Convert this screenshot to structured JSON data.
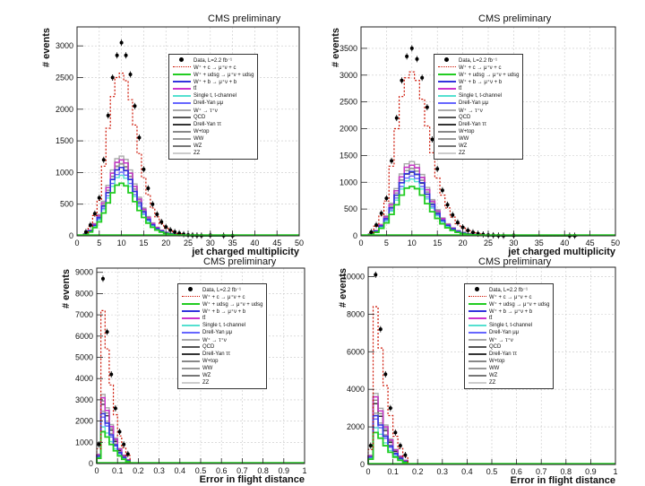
{
  "chart_data": [
    {
      "type": "bar",
      "title": "CMS preliminary",
      "xlabel": "jet charged multiplicity",
      "ylabel": "# events",
      "xlim": [
        0,
        50
      ],
      "ylim": [
        0,
        3300
      ],
      "x_ticks": [
        "0",
        "5",
        "10",
        "15",
        "20",
        "25",
        "30",
        "35",
        "40",
        "45",
        "50"
      ],
      "y_ticks": [
        "0",
        "500",
        "1000",
        "1500",
        "2000",
        "2500",
        "3000"
      ],
      "grid": true,
      "legend_position": "top-right",
      "legend": [
        "Data, L=2.2 fb⁻¹",
        "W⁺ + c → μ⁺ν + c",
        "W⁺ + udsg → μ⁺ν + udsg",
        "W⁺ + b → μ⁺ν + b",
        "tt̄",
        "Single t, t-channel",
        "Drell-Yan μμ",
        "W⁺ → τ⁺ν",
        "QCD",
        "Drell-Yan ττ",
        "W+top",
        "WW",
        "WZ",
        "ZZ"
      ],
      "bin_width": 1,
      "x": [
        2,
        3,
        4,
        5,
        6,
        7,
        8,
        9,
        10,
        11,
        12,
        13,
        14,
        15,
        16,
        17,
        18,
        19,
        20,
        21,
        22,
        23,
        24,
        25,
        26,
        27,
        28,
        30,
        33,
        35
      ],
      "series": [
        {
          "name": "Data, L=2.2 fb⁻¹",
          "values": [
            60,
            170,
            350,
            600,
            1200,
            1900,
            2500,
            2850,
            3050,
            2850,
            2550,
            2050,
            1550,
            1050,
            750,
            500,
            340,
            220,
            140,
            90,
            60,
            40,
            25,
            15,
            8,
            5,
            3,
            8,
            3,
            3
          ]
        },
        {
          "name": "W⁺ + c → μ⁺ν + c",
          "values": [
            50,
            150,
            320,
            560,
            1100,
            1700,
            2200,
            2500,
            2570,
            2450,
            2150,
            1750,
            1300,
            920,
            650,
            440,
            300,
            190,
            120,
            80,
            50,
            32,
            20,
            12,
            7,
            4,
            2,
            1,
            1,
            0
          ]
        },
        {
          "name": "W⁺ + udsg → μ⁺ν + udsg",
          "values": [
            20,
            60,
            130,
            220,
            360,
            520,
            680,
            800,
            830,
            790,
            680,
            540,
            400,
            290,
            200,
            135,
            90,
            58,
            37,
            24,
            15,
            9,
            5,
            3,
            2,
            1,
            1,
            0,
            0,
            0
          ]
        },
        {
          "name": "W⁺ + b → μ⁺ν + b",
          "values": [
            26,
            78,
            165,
            290,
            470,
            680,
            890,
            1040,
            1080,
            1030,
            890,
            700,
            520,
            380,
            260,
            175,
            117,
            75,
            48,
            31,
            20,
            12,
            7,
            4,
            3,
            1,
            1,
            0,
            0,
            0
          ]
        },
        {
          "name": "tt̄",
          "values": [
            29,
            87,
            185,
            320,
            520,
            760,
            990,
            1160,
            1200,
            1150,
            990,
            780,
            580,
            420,
            290,
            195,
            130,
            84,
            53,
            35,
            22,
            13,
            8,
            5,
            3,
            1,
            1,
            0,
            0,
            0
          ]
        }
      ]
    },
    {
      "type": "bar",
      "title": "CMS preliminary",
      "xlabel": "jet charged multiplicity",
      "ylabel": "# events",
      "xlim": [
        0,
        50
      ],
      "ylim": [
        0,
        3900
      ],
      "x_ticks": [
        "0",
        "5",
        "10",
        "15",
        "20",
        "25",
        "30",
        "35",
        "40",
        "45",
        "50"
      ],
      "y_ticks": [
        "0",
        "500",
        "1000",
        "1500",
        "2000",
        "2500",
        "3000",
        "3500"
      ],
      "grid": true,
      "legend_position": "top-right",
      "legend": [
        "Data, L=2.2 fb⁻¹",
        "W⁺ + c → μ⁺ν + c",
        "W⁺ + udsg → μ⁺ν + udsg",
        "W⁺ + b → μ⁺ν + b",
        "tt̄",
        "Single t, t-channel",
        "Drell-Yan μμ",
        "W⁺ → τ⁺ν",
        "QCD",
        "Drell-Yan ττ",
        "W+top",
        "WW",
        "WZ",
        "ZZ"
      ],
      "bin_width": 1,
      "x": [
        2,
        3,
        4,
        5,
        6,
        7,
        8,
        9,
        10,
        11,
        12,
        13,
        14,
        15,
        16,
        17,
        18,
        19,
        20,
        21,
        22,
        23,
        24,
        25,
        26,
        27,
        28,
        30,
        41,
        42
      ],
      "series": [
        {
          "name": "Data, L=2.2 fb⁻¹",
          "values": [
            70,
            200,
            420,
            700,
            1400,
            2200,
            2900,
            3350,
            3500,
            3300,
            2950,
            2400,
            1800,
            1250,
            850,
            580,
            390,
            250,
            160,
            100,
            65,
            40,
            25,
            15,
            10,
            5,
            3,
            8,
            3,
            3
          ]
        },
        {
          "name": "W⁺ + c → μ⁺ν + c",
          "values": [
            60,
            180,
            380,
            650,
            1300,
            2000,
            2600,
            2950,
            3060,
            2900,
            2550,
            2050,
            1550,
            1080,
            760,
            520,
            350,
            225,
            145,
            95,
            60,
            37,
            23,
            14,
            8,
            5,
            2,
            1,
            0,
            0
          ]
        },
        {
          "name": "W⁺ + udsg → μ⁺ν + udsg",
          "values": [
            22,
            66,
            140,
            240,
            400,
            580,
            760,
            890,
            920,
            880,
            760,
            600,
            450,
            325,
            225,
            150,
            100,
            65,
            42,
            27,
            17,
            10,
            6,
            3,
            2,
            1,
            1,
            0,
            0,
            0
          ]
        },
        {
          "name": "W⁺ + b → μ⁺ν + b",
          "values": [
            29,
            87,
            185,
            320,
            520,
            760,
            990,
            1160,
            1200,
            1150,
            990,
            780,
            585,
            420,
            290,
            195,
            130,
            85,
            55,
            35,
            22,
            13,
            8,
            5,
            3,
            1,
            1,
            0,
            0,
            0
          ]
        },
        {
          "name": "tt̄",
          "values": [
            32,
            96,
            205,
            355,
            580,
            840,
            1100,
            1280,
            1320,
            1270,
            1090,
            860,
            645,
            465,
            320,
            215,
            143,
            93,
            60,
            39,
            24,
            14,
            9,
            5,
            3,
            1,
            1,
            0,
            0,
            0
          ]
        }
      ]
    },
    {
      "type": "bar",
      "title": "CMS preliminary",
      "xlabel": "Error in flight distance",
      "ylabel": "# events",
      "xlim": [
        0,
        1
      ],
      "ylim": [
        0,
        9200
      ],
      "x_ticks": [
        "0",
        "0.1",
        "0.2",
        "0.3",
        "0.4",
        "0.5",
        "0.6",
        "0.7",
        "0.8",
        "0.9",
        "1"
      ],
      "y_ticks": [
        "0",
        "1000",
        "2000",
        "3000",
        "4000",
        "5000",
        "6000",
        "7000",
        "8000",
        "9000"
      ],
      "grid": true,
      "legend_position": "top-right",
      "legend": [
        "Data, L=2.2 fb⁻¹",
        "W⁺ + c → μ⁺ν + c",
        "W⁺ + udsg → μ⁺ν + udsg",
        "W⁺ + b → μ⁺ν + b",
        "tt̄",
        "Single t, t-channel",
        "Drell-Yan μμ",
        "W⁺ → τ⁺ν",
        "QCD",
        "Drell-Yan ττ",
        "W+top",
        "WW",
        "WZ",
        "ZZ"
      ],
      "bin_width": 0.02,
      "x": [
        0.01,
        0.03,
        0.05,
        0.07,
        0.09,
        0.11,
        0.13,
        0.15
      ],
      "series": [
        {
          "name": "Data, L=2.2 fb⁻¹",
          "values": [
            900,
            8700,
            6200,
            4200,
            2600,
            1500,
            900,
            450
          ]
        },
        {
          "name": "W⁺ + c → μ⁺ν + c",
          "values": [
            700,
            7200,
            5400,
            3700,
            2300,
            1300,
            750,
            380
          ]
        },
        {
          "name": "W⁺ + udsg → μ⁺ν + udsg",
          "values": [
            250,
            1500,
            1250,
            900,
            600,
            360,
            200,
            100
          ]
        },
        {
          "name": "W⁺ + b → μ⁺ν + b",
          "values": [
            350,
            2350,
            1900,
            1350,
            880,
            520,
            290,
            140
          ]
        },
        {
          "name": "tt̄",
          "values": [
            420,
            3100,
            2500,
            1750,
            1150,
            680,
            380,
            180
          ]
        }
      ]
    },
    {
      "type": "bar",
      "title": "CMS preliminary",
      "xlabel": "Error in flight distance",
      "ylabel": "# events",
      "xlim": [
        0,
        1
      ],
      "ylim": [
        0,
        10500
      ],
      "x_ticks": [
        "0",
        "0.1",
        "0.2",
        "0.3",
        "0.4",
        "0.5",
        "0.6",
        "0.7",
        "0.8",
        "0.9",
        "1"
      ],
      "y_ticks": [
        "0",
        "2000",
        "4000",
        "6000",
        "8000",
        "10000"
      ],
      "grid": true,
      "legend_position": "top-right",
      "legend": [
        "Data, L=2.2 fb⁻¹",
        "W⁺ + c → μ⁺ν + c",
        "W⁺ + udsg → μ⁺ν + udsg",
        "W⁺ + b → μ⁺ν + b",
        "tt̄",
        "Single t, t-channel",
        "Drell-Yan μμ",
        "W⁺ → τ⁺ν",
        "QCD",
        "Drell-Yan ττ",
        "W+top",
        "WW",
        "WZ",
        "ZZ"
      ],
      "bin_width": 0.02,
      "x": [
        0.01,
        0.03,
        0.05,
        0.07,
        0.09,
        0.11,
        0.13,
        0.15
      ],
      "series": [
        {
          "name": "Data, L=2.2 fb⁻¹",
          "values": [
            1000,
            10100,
            7200,
            4800,
            3000,
            1700,
            1000,
            500
          ]
        },
        {
          "name": "W⁺ + c → μ⁺ν + c",
          "values": [
            800,
            8400,
            6200,
            4200,
            2600,
            1500,
            850,
            420
          ]
        },
        {
          "name": "W⁺ + udsg → μ⁺ν + udsg",
          "values": [
            280,
            1700,
            1400,
            1000,
            650,
            390,
            220,
            110
          ]
        },
        {
          "name": "W⁺ + b → μ⁺ν + b",
          "values": [
            400,
            2600,
            2100,
            1500,
            980,
            580,
            320,
            160
          ]
        },
        {
          "name": "tt̄",
          "values": [
            470,
            3600,
            2850,
            2000,
            1300,
            770,
            430,
            210
          ]
        }
      ]
    }
  ],
  "style": {
    "data_color": "#000000",
    "signal_color": "#cc1100",
    "mc_colors": [
      "#22cc22",
      "#3333dd",
      "#cc33cc",
      "#55e0d0",
      "#6666ff",
      "#aaaaaa",
      "#555555",
      "#888888",
      "#333333",
      "#999999",
      "#cccccc",
      "#777777",
      "#bbbbbb"
    ],
    "frame_color": "#222222",
    "grid_color": "#c8c8c8"
  }
}
